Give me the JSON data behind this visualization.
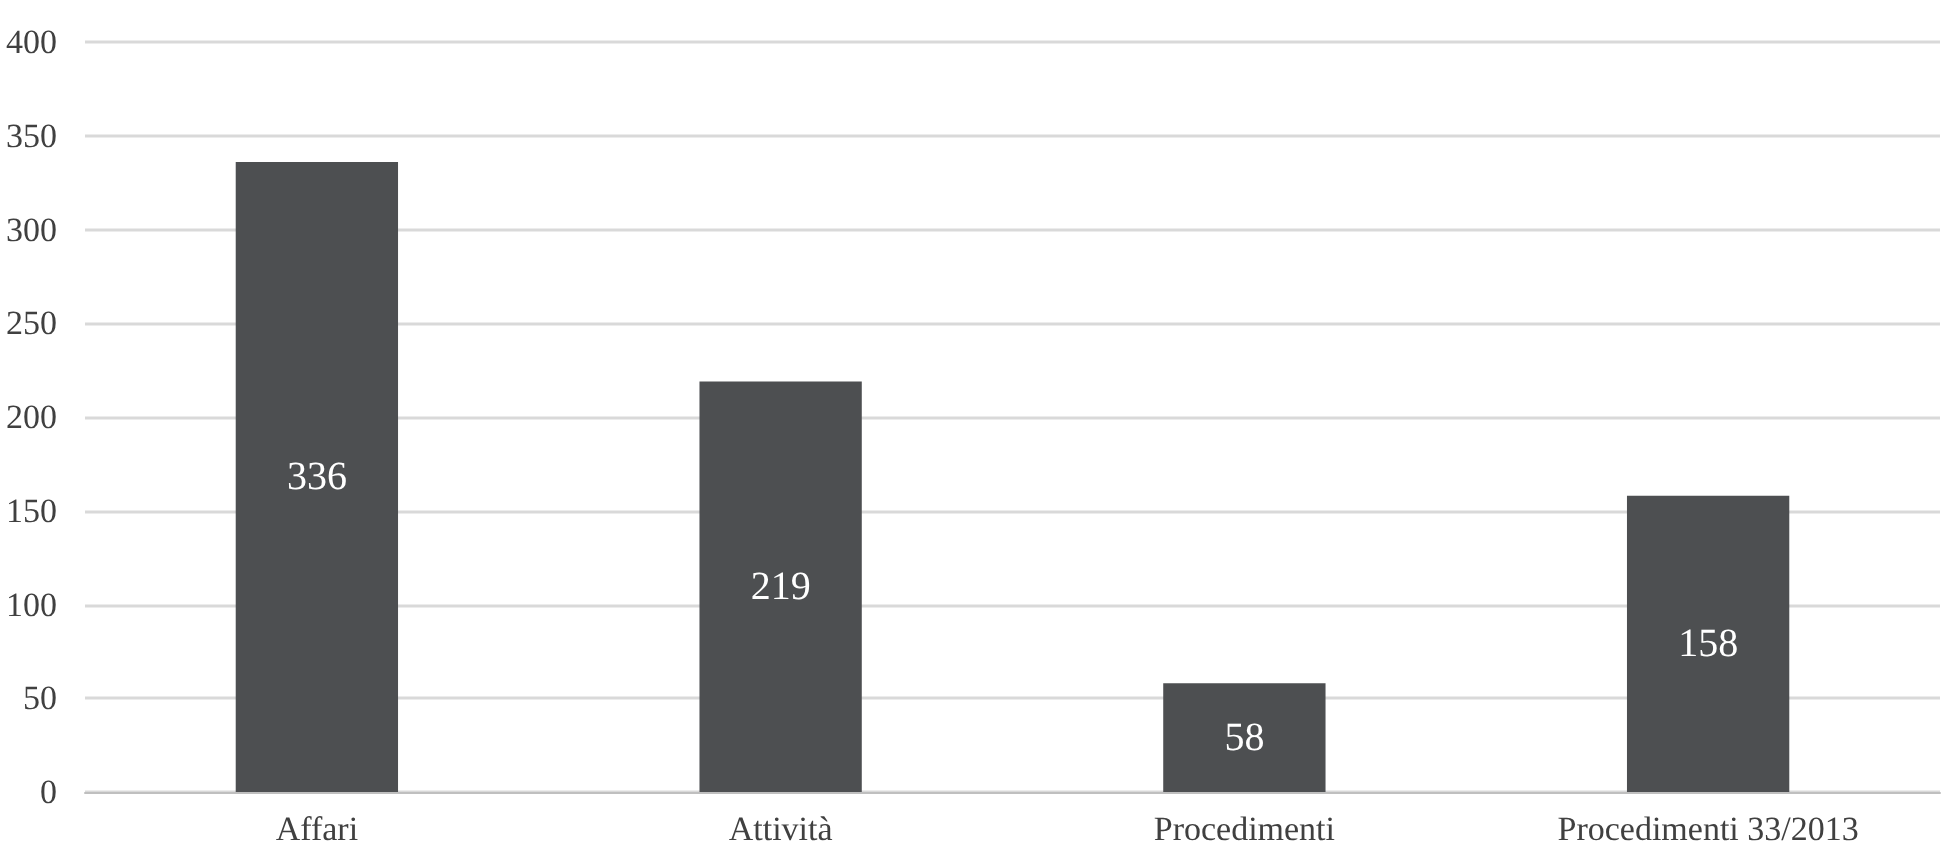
{
  "chart_data": {
    "type": "bar",
    "categories": [
      "Affari",
      "Attività",
      "Procedimenti",
      "Procedimenti 33/2013"
    ],
    "values": [
      336,
      219,
      58,
      158
    ],
    "color": "#4d4f51",
    "ylim": [
      0,
      400
    ],
    "yticks": [
      0,
      50,
      100,
      150,
      200,
      250,
      300,
      350,
      400
    ],
    "grid": "y",
    "data_labels": true
  }
}
